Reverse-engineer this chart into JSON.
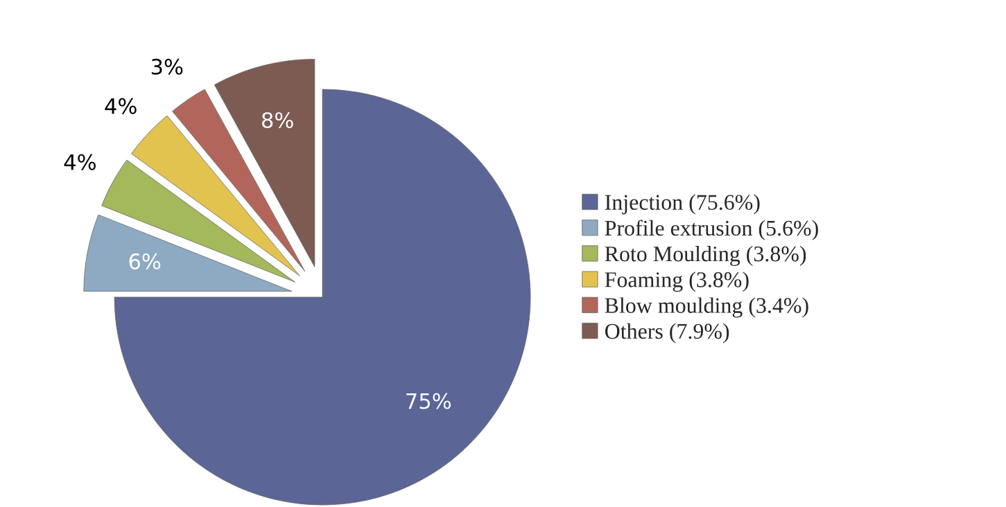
{
  "chart_data": {
    "type": "pie",
    "categories": [
      "Injection (75.6%)",
      "Profile extrusion (5.6%)",
      "Roto Moulding (3.8%)",
      "Foaming (3.8%)",
      "Blow moulding (3.4%)",
      "Others (7.9%)"
    ],
    "values": [
      75,
      6,
      4,
      4,
      3,
      8
    ],
    "colors": [
      "#5b6596",
      "#8eaac2",
      "#a4b85c",
      "#e3c350",
      "#b2665b",
      "#7d5b52"
    ],
    "value_labels": [
      "75%",
      "6%",
      "4%",
      "4%",
      "3%",
      "8%"
    ],
    "legend": "right"
  }
}
